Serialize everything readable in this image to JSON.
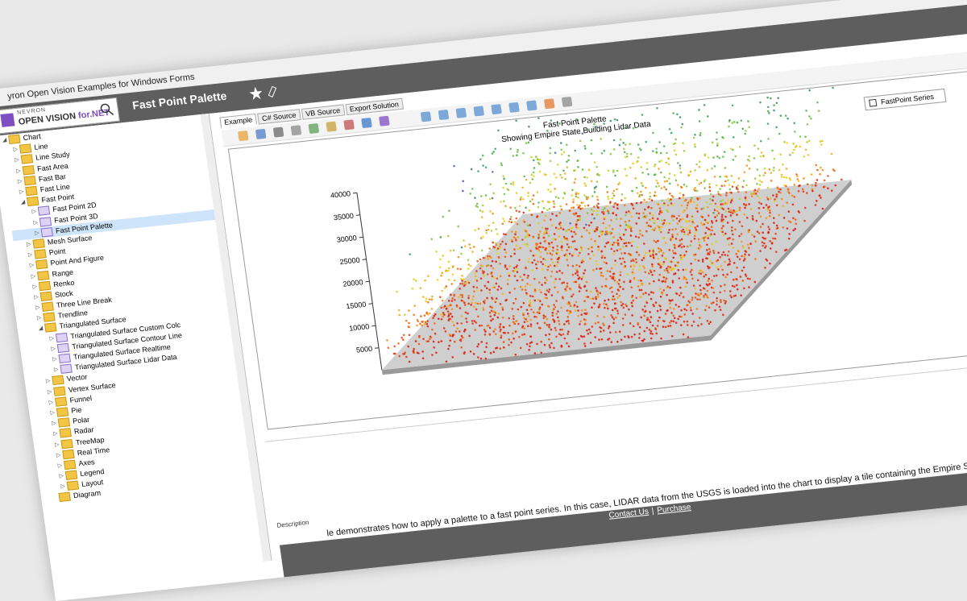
{
  "window": {
    "title": "yron Open Vision Examples for Windows Forms"
  },
  "header": {
    "logo_top": "NEVRON",
    "logo": "OPEN VISION",
    "logo_suffix": "for.NET",
    "page_title": "Fast Point Palette"
  },
  "tree": {
    "items": [
      {
        "label": "Chart",
        "children": [
          {
            "label": "Line"
          },
          {
            "label": "Line Study"
          },
          {
            "label": "Fast Area"
          },
          {
            "label": "Fast Bar"
          },
          {
            "label": "Fast Line"
          },
          {
            "label": "Fast Point",
            "children": [
              {
                "label": "Fast Point 2D"
              },
              {
                "label": "Fast Point 3D"
              },
              {
                "label": "Fast Point Palette"
              }
            ]
          },
          {
            "label": "Mesh Surface"
          },
          {
            "label": "Point"
          },
          {
            "label": "Point And Figure"
          },
          {
            "label": "Range"
          },
          {
            "label": "Renko"
          },
          {
            "label": "Stock"
          },
          {
            "label": "Three Line Break"
          },
          {
            "label": "Trendline"
          },
          {
            "label": "Triangulated Surface",
            "children": [
              {
                "label": "Triangulated Surface Custom Colc"
              },
              {
                "label": "Triangulated Surface Contour Line"
              },
              {
                "label": "Triangulated Surface Realtime"
              },
              {
                "label": "Triangulated Surface Lidar Data"
              }
            ]
          },
          {
            "label": "Vector"
          },
          {
            "label": "Vertex Surface"
          },
          {
            "label": "Funnel"
          },
          {
            "label": "Pie"
          },
          {
            "label": "Polar"
          },
          {
            "label": "Radar"
          },
          {
            "label": "TreeMap"
          },
          {
            "label": "Real Time"
          },
          {
            "label": "Axes"
          },
          {
            "label": "Legend"
          },
          {
            "label": "Layout"
          }
        ]
      },
      {
        "label": "Diagram"
      }
    ]
  },
  "tabs": [
    "Example",
    "C# Source",
    "VB Source",
    "Export Solution"
  ],
  "chart": {
    "title": "Fast Point Palette",
    "subtitle": "Showing Empire State Building Lidar Data",
    "legend": "FastPoint Series",
    "ylim": [
      0,
      40000
    ],
    "yticks": [
      40000,
      35000,
      30000,
      25000,
      20000,
      15000,
      10000,
      5000
    ]
  },
  "description": {
    "label": "Description",
    "text": "le demonstrates how to apply a palette to a fast point series. In this case, LIDAR data from the USGS is loaded into the chart to display a tile containing the Empire State Building."
  },
  "footer": {
    "links": [
      "Contact Us",
      "Purchase"
    ],
    "separator": "|"
  }
}
